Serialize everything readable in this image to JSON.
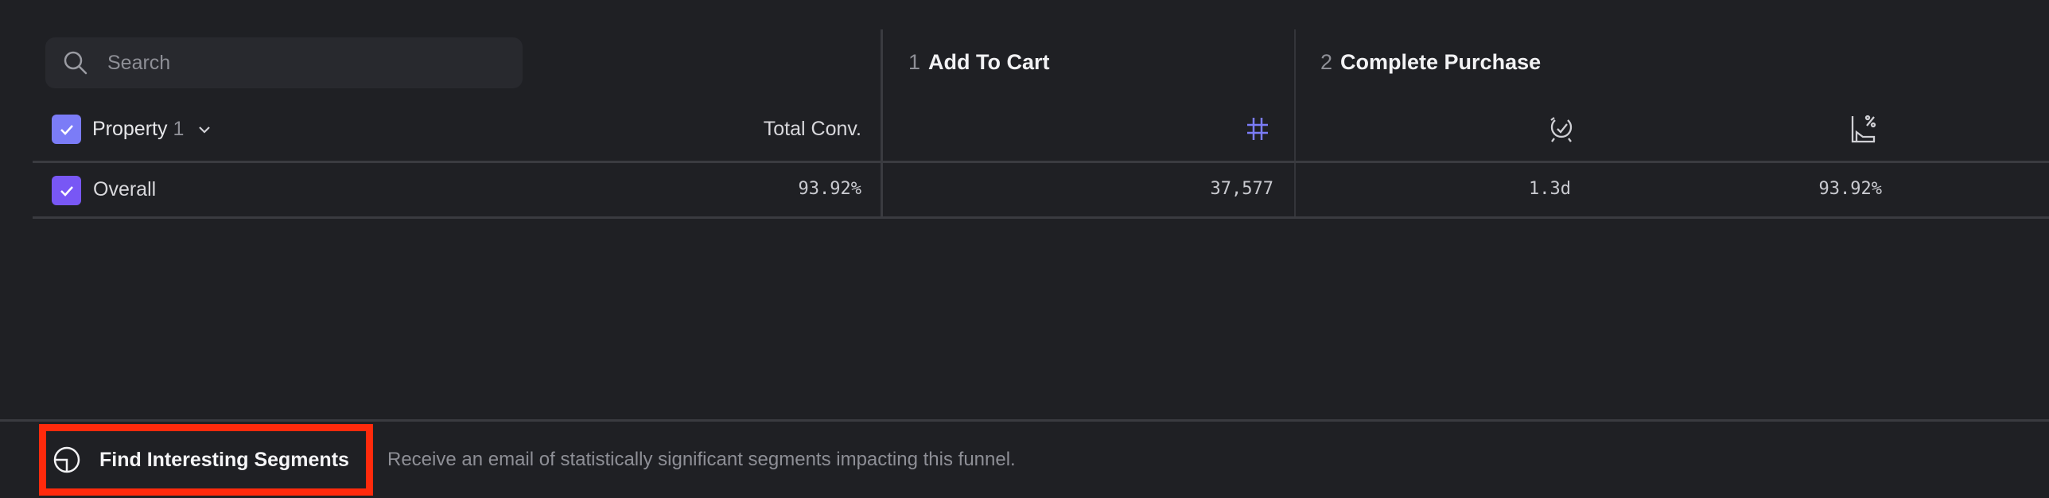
{
  "search": {
    "placeholder": "Search",
    "icon": "search-icon"
  },
  "table": {
    "property_header": {
      "label": "Property",
      "count": "1",
      "checked": true
    },
    "total_conv_header": "Total Conv.",
    "steps": [
      {
        "number": "1",
        "name": "Add To Cart",
        "metric_icons": [
          "hash-icon"
        ]
      },
      {
        "number": "2",
        "name": "Complete Purchase",
        "metric_icons": [
          "clock-check-icon",
          "chart-percent-icon"
        ]
      }
    ],
    "rows": [
      {
        "label": "Overall",
        "checked": true,
        "total_conv": "93.92%",
        "step1_count": "37,577",
        "step2_time": "1.3d",
        "step2_conv": "93.92%"
      }
    ]
  },
  "footer": {
    "button_label": "Find Interesting Segments",
    "description": "Receive an email of statistically significant segments impacting this funnel."
  },
  "colors": {
    "background": "#1f2024",
    "accent": "#7b7cf7",
    "checkbox": "#7857f5",
    "highlight": "#ff2a0c"
  }
}
